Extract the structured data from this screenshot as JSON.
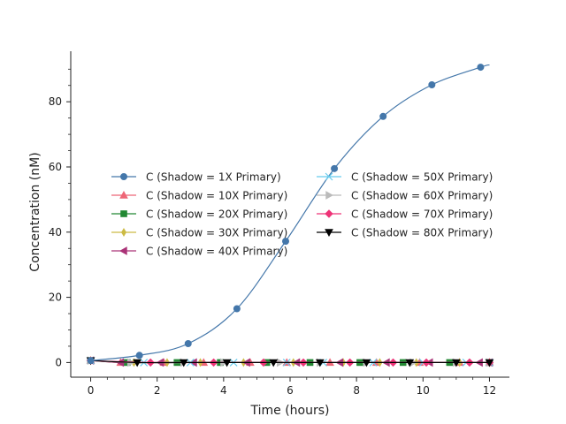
{
  "chart_data": {
    "type": "line",
    "xlabel": "Time (hours)",
    "ylabel": "Concentration (nM)",
    "xlim": [
      -0.6,
      12.6
    ],
    "ylim": [
      -4.5,
      95.5
    ],
    "xticks": [
      0,
      2,
      4,
      6,
      8,
      10,
      12
    ],
    "yticks": [
      0,
      20,
      40,
      60,
      80
    ],
    "grid": false,
    "legend": {
      "placement": "center",
      "columns": 2
    },
    "series": [
      {
        "name": "C (Shadow = 1X Primary)",
        "color": "#4477AA",
        "marker": "circle",
        "x": [
          0,
          1.467,
          2.933,
          4.4,
          5.867,
          7.333,
          8.8,
          10.267,
          11.733,
          12
        ],
        "y": [
          0.6,
          2.2,
          5.8,
          16.5,
          37.2,
          59.5,
          75.5,
          85.2,
          90.6,
          91.3
        ]
      },
      {
        "name": "C (Shadow = 10X Primary)",
        "color": "#EE6677",
        "marker": "triangle-up",
        "x": [
          0,
          0.9,
          2.2,
          3.4,
          4.8,
          5.9,
          7.2,
          8.6,
          9.9,
          11.1,
          12
        ],
        "y": [
          0.6,
          0,
          0,
          0,
          0,
          0,
          0,
          0,
          0,
          0,
          0
        ]
      },
      {
        "name": "C (Shadow = 20X Primary)",
        "color": "#228833",
        "marker": "square",
        "x": [
          0,
          1.1,
          2.6,
          3.9,
          5.3,
          6.6,
          8.1,
          9.4,
          10.8,
          12
        ],
        "y": [
          0.6,
          0,
          0,
          0,
          0,
          0,
          0,
          0,
          0,
          0
        ]
      },
      {
        "name": "C (Shadow = 30X Primary)",
        "color": "#CCBB44",
        "marker": "diamond-thin",
        "x": [
          0,
          1.3,
          2.3,
          3.3,
          4.6,
          6.1,
          7.6,
          8.7,
          9.8,
          11.1,
          12
        ],
        "y": [
          0.6,
          0,
          0,
          0,
          0,
          0,
          0,
          0,
          0,
          0,
          0
        ]
      },
      {
        "name": "C (Shadow = 40X Primary)",
        "color": "#AA3377",
        "marker": "triangle-left",
        "x": [
          0,
          0.9,
          2.1,
          3.1,
          4.7,
          6.2,
          7.5,
          8.9,
          10.2,
          11.7,
          12
        ],
        "y": [
          0.6,
          0,
          0,
          0,
          0,
          0,
          0,
          0,
          0,
          0,
          0
        ]
      },
      {
        "name": "C (Shadow = 50X Primary)",
        "color": "#66CCEE",
        "marker": "x",
        "x": [
          0,
          1.6,
          3.0,
          4.3,
          5.9,
          7.0,
          8.5,
          10.0,
          11.3,
          12
        ],
        "y": [
          0.6,
          0,
          0,
          0,
          0,
          0,
          0,
          0,
          0,
          0
        ]
      },
      {
        "name": "C (Shadow = 60X Primary)",
        "color": "#BBBBBB",
        "marker": "triangle-right",
        "x": [
          0,
          1.2,
          2.8,
          4.0,
          5.7,
          6.9,
          8.3,
          9.7,
          11.0,
          12
        ],
        "y": [
          0.6,
          0,
          0,
          0,
          0,
          0,
          0,
          0,
          0,
          0
        ]
      },
      {
        "name": "C (Shadow = 70X Primary)",
        "color": "#EE3377",
        "marker": "diamond",
        "x": [
          0,
          1.8,
          3.7,
          5.2,
          6.4,
          7.8,
          9.1,
          10.1,
          11.4,
          12
        ],
        "y": [
          0.6,
          0,
          0,
          0,
          0,
          0,
          0,
          0,
          0,
          0
        ]
      },
      {
        "name": "C (Shadow = 80X Primary)",
        "color": "#000000",
        "marker": "triangle-down",
        "x": [
          0,
          1.4,
          2.8,
          4.1,
          5.5,
          6.9,
          8.3,
          9.6,
          11.0,
          12
        ],
        "y": [
          0.6,
          0,
          0,
          0,
          0,
          0,
          0,
          0,
          0,
          0
        ]
      }
    ]
  }
}
